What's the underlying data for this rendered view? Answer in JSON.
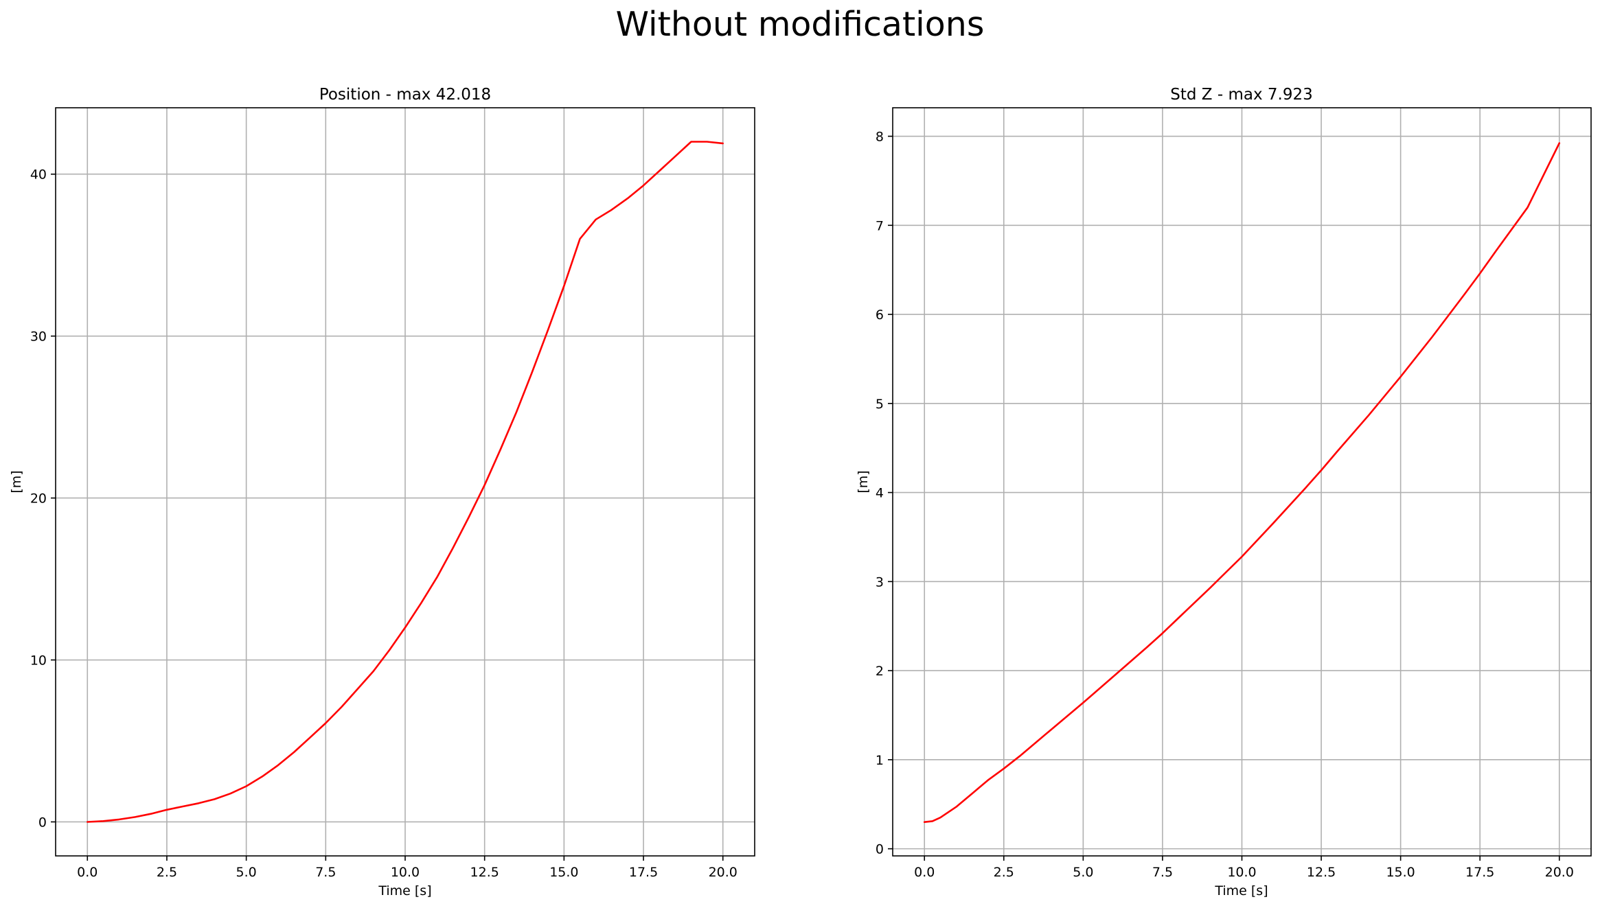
{
  "figure": {
    "title": "Without modifications"
  },
  "chart_data": [
    {
      "type": "line",
      "title": "Position - max 42.018",
      "xlabel": "Time [s]",
      "ylabel": "[m]",
      "xlim": [
        -1.0,
        21.0
      ],
      "ylim": [
        -2.1,
        44.1
      ],
      "xticks": [
        0.0,
        2.5,
        5.0,
        7.5,
        10.0,
        12.5,
        15.0,
        17.5,
        20.0
      ],
      "xtick_labels": [
        "0.0",
        "2.5",
        "5.0",
        "7.5",
        "10.0",
        "12.5",
        "15.0",
        "17.5",
        "20.0"
      ],
      "yticks": [
        0,
        10,
        20,
        30,
        40
      ],
      "ytick_labels": [
        "0",
        "10",
        "20",
        "30",
        "40"
      ],
      "grid": true,
      "series": [
        {
          "color": "#ff0000",
          "x": [
            0,
            0.5,
            1.0,
            1.5,
            2.0,
            2.5,
            3.0,
            3.5,
            4.0,
            4.5,
            5.0,
            5.5,
            6.0,
            6.5,
            7.0,
            7.5,
            8.0,
            8.5,
            9.0,
            9.5,
            10.0,
            10.5,
            11.0,
            11.5,
            12.0,
            12.5,
            13.0,
            13.5,
            14.0,
            14.5,
            15.0,
            15.5,
            16.0,
            16.5,
            17.0,
            17.5,
            18.0,
            18.5,
            19.0,
            19.5,
            20.0
          ],
          "y": [
            0,
            0.05,
            0.15,
            0.3,
            0.5,
            0.75,
            0.95,
            1.15,
            1.4,
            1.75,
            2.2,
            2.8,
            3.5,
            4.3,
            5.2,
            6.1,
            7.1,
            8.2,
            9.3,
            10.6,
            12.0,
            13.5,
            15.1,
            16.9,
            18.8,
            20.8,
            23.0,
            25.3,
            27.8,
            30.4,
            33.1,
            36.0,
            37.2,
            37.8,
            38.5,
            39.3,
            40.2,
            41.1,
            42.0,
            42.0,
            41.9
          ]
        }
      ]
    },
    {
      "type": "line",
      "title": "Std Z - max 7.923",
      "xlabel": "Time [s]",
      "ylabel": "[m]",
      "xlim": [
        -1.0,
        21.0
      ],
      "ylim": [
        -0.08,
        8.32
      ],
      "xticks": [
        0.0,
        2.5,
        5.0,
        7.5,
        10.0,
        12.5,
        15.0,
        17.5,
        20.0
      ],
      "xtick_labels": [
        "0.0",
        "2.5",
        "5.0",
        "7.5",
        "10.0",
        "12.5",
        "15.0",
        "17.5",
        "20.0"
      ],
      "yticks": [
        0,
        1,
        2,
        3,
        4,
        5,
        6,
        7,
        8
      ],
      "ytick_labels": [
        "0",
        "1",
        "2",
        "3",
        "4",
        "5",
        "6",
        "7",
        "8"
      ],
      "grid": true,
      "series": [
        {
          "color": "#ff0000",
          "x": [
            0,
            0.25,
            0.5,
            1.0,
            1.5,
            2.0,
            2.5,
            3.0,
            4.0,
            5.0,
            6.0,
            7.0,
            7.5,
            8.0,
            9.0,
            10.0,
            11.0,
            12.0,
            12.5,
            13.0,
            14.0,
            15.0,
            16.0,
            17.0,
            17.5,
            18.0,
            19.0,
            20.0
          ],
          "y": [
            0.3,
            0.31,
            0.35,
            0.47,
            0.62,
            0.77,
            0.9,
            1.04,
            1.34,
            1.64,
            1.95,
            2.26,
            2.42,
            2.59,
            2.93,
            3.28,
            3.66,
            4.05,
            4.25,
            4.46,
            4.87,
            5.3,
            5.75,
            6.22,
            6.46,
            6.71,
            7.2,
            7.923
          ]
        }
      ]
    }
  ]
}
